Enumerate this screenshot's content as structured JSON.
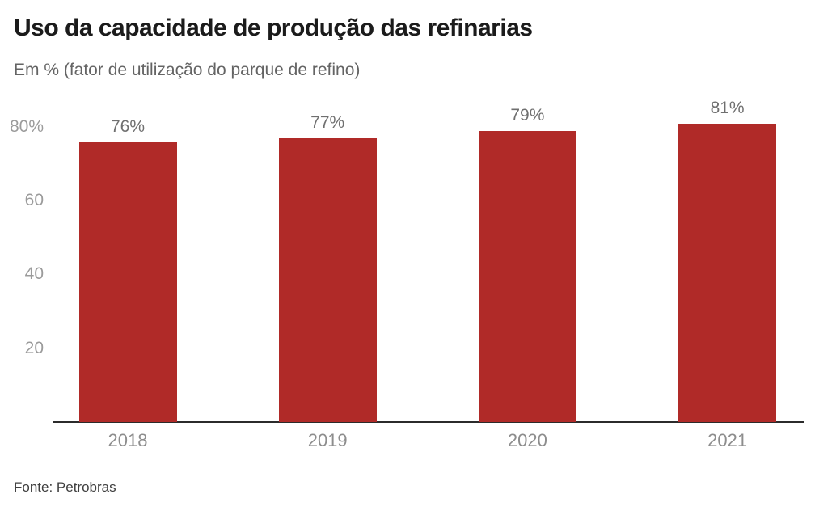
{
  "header": {
    "title": "Uso da capacidade de produção das refinarias",
    "subtitle": "Em % (fator de utilização do parque de refino)"
  },
  "footer": {
    "source": "Fonte: Petrobras"
  },
  "chart_data": {
    "type": "bar",
    "title": "Uso da capacidade de produção das refinarias",
    "subtitle": "Em % (fator de utilização do parque de refino)",
    "categories": [
      "2018",
      "2019",
      "2020",
      "2021"
    ],
    "values": [
      76,
      77,
      79,
      81
    ],
    "value_labels": [
      "76%",
      "77%",
      "79%",
      "81%"
    ],
    "yticks": [
      {
        "value": 80,
        "label": "80%"
      },
      {
        "value": 60,
        "label": "60"
      },
      {
        "value": 40,
        "label": "40"
      },
      {
        "value": 20,
        "label": "20"
      }
    ],
    "ylim": [
      0,
      89
    ],
    "grid": false,
    "legend": null,
    "xlabel": "",
    "ylabel": "",
    "colors": {
      "bar": "#b02a28",
      "axis_line": "#2b2b2b",
      "title_text": "#1b1b1b",
      "subtitle_text": "#646464",
      "ytick_text": "#9b9b9b",
      "xtick_text": "#8d8d8d",
      "value_label_text": "#6f6f6f",
      "background": "#ffffff"
    },
    "source": "Fonte: Petrobras"
  }
}
